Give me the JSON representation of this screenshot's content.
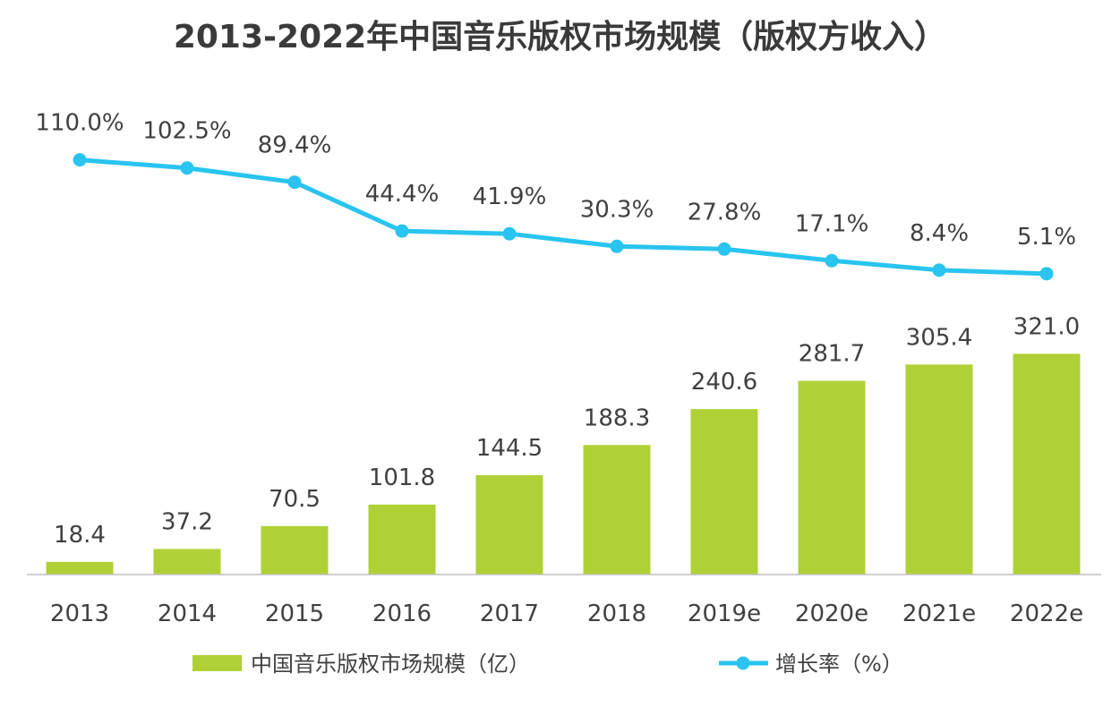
{
  "chart_data": {
    "type": "bar",
    "title": "2013-2022年中国音乐版权市场规模（版权方收入）",
    "categories": [
      "2013",
      "2014",
      "2015",
      "2016",
      "2017",
      "2018",
      "2019e",
      "2020e",
      "2021e",
      "2022e"
    ],
    "series": [
      {
        "name": "中国音乐版权市场规模（亿）",
        "type": "bar",
        "color": "#b0d136",
        "values": [
          18.4,
          37.2,
          70.5,
          101.8,
          144.5,
          188.3,
          240.6,
          281.7,
          305.4,
          321.0
        ],
        "labels": [
          "18.4",
          "37.2",
          "70.5",
          "101.8",
          "144.5",
          "188.3",
          "240.6",
          "281.7",
          "305.4",
          "321.0"
        ]
      },
      {
        "name": "增长率（%）",
        "type": "line",
        "color": "#29c4ef",
        "values": [
          110.0,
          102.5,
          89.4,
          44.4,
          41.9,
          30.3,
          27.8,
          17.1,
          8.4,
          5.1
        ],
        "labels": [
          "110.0%",
          "102.5%",
          "89.4%",
          "44.4%",
          "41.9%",
          "30.3%",
          "27.8%",
          "17.1%",
          "8.4%",
          "5.1%"
        ]
      }
    ],
    "legend_position": "bottom",
    "grid": false
  }
}
